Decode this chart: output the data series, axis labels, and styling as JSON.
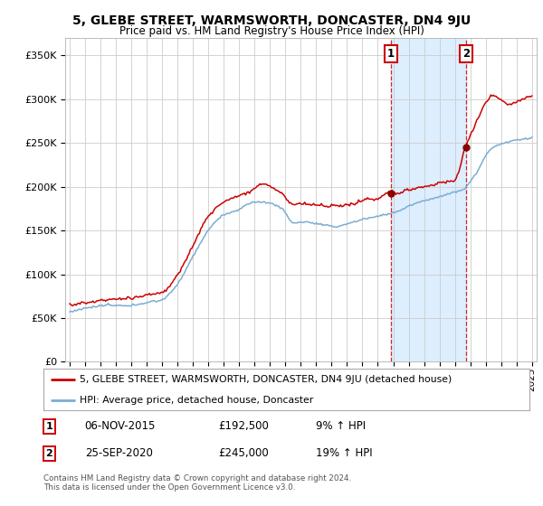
{
  "title": "5, GLEBE STREET, WARMSWORTH, DONCASTER, DN4 9JU",
  "subtitle": "Price paid vs. HM Land Registry's House Price Index (HPI)",
  "legend_line1": "5, GLEBE STREET, WARMSWORTH, DONCASTER, DN4 9JU (detached house)",
  "legend_line2": "HPI: Average price, detached house, Doncaster",
  "annotation1": {
    "label": "1",
    "date": "06-NOV-2015",
    "price": "£192,500",
    "hpi": "9% ↑ HPI",
    "x_year": 2015.85
  },
  "annotation2": {
    "label": "2",
    "date": "25-SEP-2020",
    "price": "£245,000",
    "hpi": "19% ↑ HPI",
    "x_year": 2020.73
  },
  "footer": "Contains HM Land Registry data © Crown copyright and database right 2024.\nThis data is licensed under the Open Government Licence v3.0.",
  "property_color": "#cc0000",
  "hpi_color": "#7aadd4",
  "background_color": "#ffffff",
  "grid_color": "#cccccc",
  "highlight_bg": "#ddeeff",
  "ylim": [
    0,
    370000
  ],
  "yticks": [
    0,
    50000,
    100000,
    150000,
    200000,
    250000,
    300000,
    350000
  ],
  "xlim_start": 1994.7,
  "xlim_end": 2025.3
}
